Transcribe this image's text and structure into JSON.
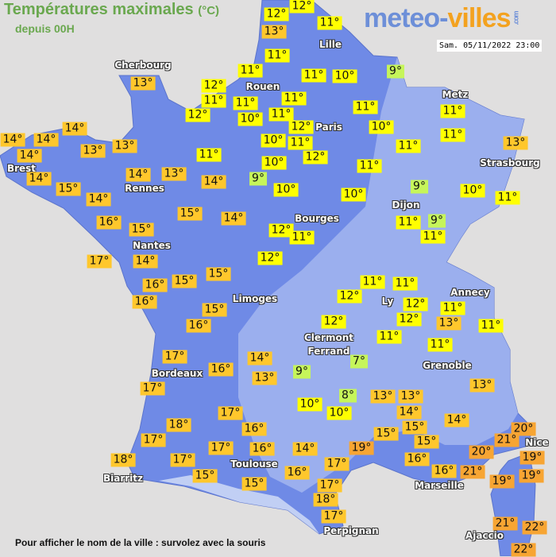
{
  "header": {
    "title": "Températures maximales",
    "unit": "(°C)",
    "subtitle": "depuis 00H",
    "logo_main": "meteo-",
    "logo_accent": "villes",
    "logo_suffix": ".com",
    "datetime": "Sam. 05/11/2022 23:00"
  },
  "footer": {
    "hint": "Pour afficher le nom de la ville : survolez avec la souris"
  },
  "colors": {
    "land": "#6f8ae6",
    "land_light": "#a6b8f0",
    "sea": "#e0dfdf",
    "cold": "#c6f55a",
    "mild": "#ffff00",
    "warm": "#ffc72c",
    "hot": "#f7a533",
    "title": "#6aa84f"
  },
  "cities": [
    "Cherbourg",
    "Rouen",
    "Lille",
    "Paris",
    "Metz",
    "Strasbourg",
    "Brest",
    "Rennes",
    "Dijon",
    "Bourges",
    "Nantes",
    "Limoges",
    "Ly",
    "Annecy",
    "Clermont",
    "Ferrand",
    "Grenoble",
    "Bordeaux",
    "Toulouse",
    "Biarritz",
    "Marseille",
    "Nice",
    "Perpignan",
    "Ajaccio"
  ],
  "temperatures": [
    "12°",
    "12°",
    "13°",
    "11°",
    "11°",
    "11°",
    "12°",
    "11°",
    "11°",
    "12°",
    "10°",
    "11°",
    "11°",
    "11°",
    "10°",
    "9°",
    "13°",
    "12°",
    "11°",
    "10°",
    "12°",
    "10°",
    "10°",
    "11°",
    "11°",
    "11°",
    "11°",
    "13°",
    "11°",
    "11°",
    "9°",
    "10°",
    "10°",
    "9°",
    "10°",
    "11°",
    "11°",
    "9°",
    "11°",
    "12°",
    "11°",
    "12°",
    "14°",
    "14°",
    "14°",
    "14°",
    "13°",
    "13°",
    "14°",
    "15°",
    "14°",
    "14°",
    "13°",
    "14°",
    "16°",
    "15°",
    "15°",
    "14°",
    "17°",
    "14°",
    "16°",
    "15°",
    "15°",
    "16°",
    "15°",
    "16°",
    "17°",
    "16°",
    "14°",
    "13°",
    "17°",
    "17°",
    "18°",
    "16°",
    "17°",
    "17°",
    "16°",
    "18°",
    "17°",
    "15°",
    "15°",
    "16°",
    "14°",
    "11°",
    "11°",
    "12°",
    "12°",
    "12°",
    "11°",
    "13°",
    "11°",
    "12°",
    "11°",
    "11°",
    "7°",
    "9°",
    "13°",
    "8°",
    "10°",
    "10°",
    "13°",
    "13°",
    "14°",
    "15°",
    "15°",
    "14°",
    "19°",
    "15°",
    "16°",
    "16°",
    "17°",
    "20°",
    "21°",
    "20°",
    "19°",
    "21°",
    "19°",
    "19°",
    "17°",
    "18°",
    "17°",
    "21°",
    "22°",
    "22°"
  ]
}
